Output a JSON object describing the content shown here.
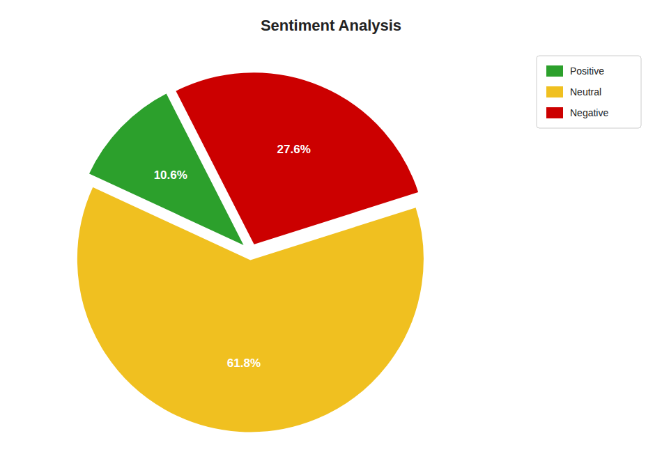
{
  "chart_data": {
    "type": "pie",
    "title": "Sentiment Analysis",
    "categories": [
      "Negative",
      "Neutral",
      "Positive"
    ],
    "values": [
      27.6,
      61.8,
      10.6
    ],
    "value_labels": [
      "27.6%",
      "61.8%",
      "10.6%"
    ],
    "colors": [
      "#cc0000",
      "#f0c020",
      "#2ca02c"
    ],
    "data_labels": true,
    "legend": "upper right"
  }
}
